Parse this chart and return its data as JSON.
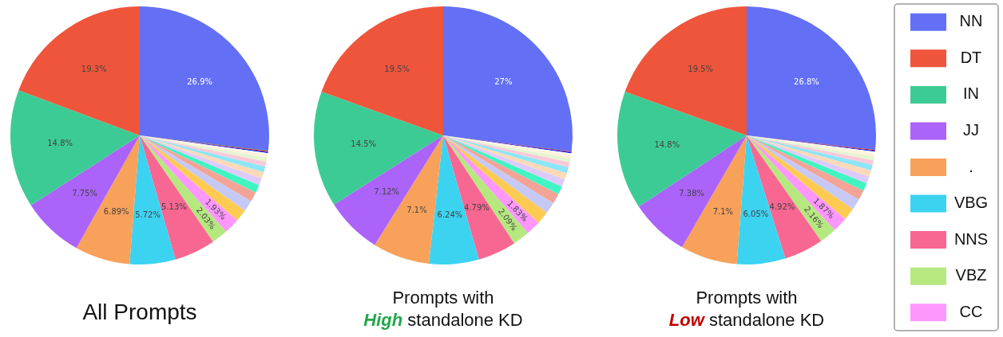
{
  "chart_data": [
    {
      "type": "pie",
      "title": "All Prompts",
      "categories": [
        null,
        null,
        null,
        null,
        null,
        null,
        null,
        null,
        null,
        null,
        null,
        null,
        null,
        null,
        null,
        null,
        null,
        null,
        null,
        null,
        null,
        null,
        null
      ],
      "values": [
        26.9,
        19.3,
        14.8,
        7.75,
        6.89,
        5.72,
        5.13,
        2.03,
        1.93,
        1.55,
        1.4,
        1.2,
        1.0,
        0.9,
        0.8,
        0.7,
        0.6,
        0.5,
        0.4,
        0.2,
        0.15,
        0.1,
        0.05
      ],
      "value_labels": [
        "26.9%",
        "19.3%",
        "14.8%",
        "7.75%",
        "6.89%",
        "5.72%",
        "5.13%",
        "2.03%",
        "1.93%",
        null,
        null,
        null,
        null,
        null,
        null,
        null,
        null,
        null,
        null,
        null,
        null,
        null,
        null
      ],
      "colors": [
        "#6370f5",
        "#ee553b",
        "#3dcb95",
        "#ab63fa",
        "#f8a15a",
        "#3cd3f1",
        "#f86692",
        "#b6e880",
        "#fd97fd",
        "#fecb52",
        "#c6c9f5",
        "#f3a496",
        "#40f5c2",
        "#dccbfa",
        "#fdd9b8",
        "#8ce6f6",
        "#fcc8d8",
        "#e4f5cf",
        "#fff2dc",
        "#fffbf2",
        "#1a1aee",
        "#cc2a10",
        "#2a7a4a"
      ],
      "legend": false
    },
    {
      "type": "pie",
      "title": "Prompts with High standalone KD",
      "categories": [
        null,
        null,
        null,
        null,
        null,
        null,
        null,
        null,
        null,
        null,
        null,
        null,
        null,
        null,
        null,
        null,
        null,
        null,
        null,
        null,
        null,
        null
      ],
      "values": [
        27,
        19.5,
        14.5,
        7.12,
        7.1,
        6.24,
        4.79,
        2.09,
        1.83,
        1.6,
        1.45,
        1.25,
        1.05,
        0.95,
        0.8,
        0.75,
        0.65,
        0.5,
        0.4,
        0.2,
        0.15,
        0.08
      ],
      "value_labels": [
        "27%",
        "19.5%",
        "14.5%",
        "7.12%",
        "7.1%",
        "6.24%",
        "4.79%",
        "2.09%",
        "1.83%",
        null,
        null,
        null,
        null,
        null,
        null,
        null,
        null,
        null,
        null,
        null,
        null,
        null
      ],
      "colors": [
        "#6370f5",
        "#ee553b",
        "#3dcb95",
        "#ab63fa",
        "#f8a15a",
        "#3cd3f1",
        "#f86692",
        "#b6e880",
        "#fd97fd",
        "#fecb52",
        "#c6c9f5",
        "#f3a496",
        "#40f5c2",
        "#dccbfa",
        "#fdd9b8",
        "#8ce6f6",
        "#fcc8d8",
        "#e4f5cf",
        "#fff2dc",
        "#fffbf2",
        "#1a1aee",
        "#cc2a10"
      ],
      "legend": false
    },
    {
      "type": "pie",
      "title": "Prompts with Low standalone KD",
      "categories": [
        "NN",
        "DT",
        "IN",
        "JJ",
        ".",
        "VBG",
        "NNS",
        "VBZ",
        "CC",
        null,
        null,
        null,
        null,
        null,
        null,
        null,
        null,
        null,
        null,
        null,
        null,
        null
      ],
      "values": [
        26.8,
        19.5,
        14.8,
        7.38,
        7.1,
        6.05,
        4.92,
        2.16,
        1.87,
        1.55,
        1.4,
        1.2,
        1.0,
        0.9,
        0.8,
        0.7,
        0.55,
        0.5,
        0.4,
        0.2,
        0.13,
        0.09
      ],
      "value_labels": [
        "26.8%",
        "19.5%",
        "14.8%",
        "7.38%",
        "7.1%",
        "6.05%",
        "4.92%",
        "2.16%",
        "1.87%",
        null,
        null,
        null,
        null,
        null,
        null,
        null,
        null,
        null,
        null,
        null,
        null,
        null
      ],
      "colors": [
        "#6370f5",
        "#ee553b",
        "#3dcb95",
        "#ab63fa",
        "#f8a15a",
        "#3cd3f1",
        "#f86692",
        "#b6e880",
        "#fd97fd",
        "#fecb52",
        "#c6c9f5",
        "#f3a496",
        "#40f5c2",
        "#dccbfa",
        "#fdd9b8",
        "#8ce6f6",
        "#fcc8d8",
        "#e4f5cf",
        "#fff2dc",
        "#fffbf2",
        "#1a1aee",
        "#cc2a10"
      ],
      "legend": "right"
    }
  ]
}
